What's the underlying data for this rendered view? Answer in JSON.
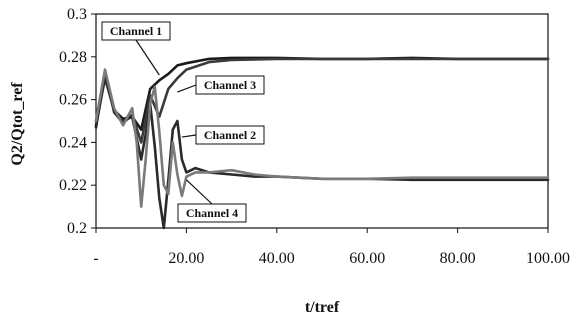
{
  "chart_data": {
    "type": "line",
    "title": "",
    "xlabel": "t/tref",
    "ylabel": "Q2/Qtot_ref",
    "xlim": [
      0,
      100
    ],
    "ylim": [
      0.2,
      0.3
    ],
    "xticks": [
      0,
      20,
      40,
      60,
      80,
      100
    ],
    "xtick_labels": [
      "-",
      "20.00",
      "40.00",
      "60.00",
      "80.00",
      "100.00"
    ],
    "yticks": [
      0.2,
      0.22,
      0.24,
      0.26,
      0.28,
      0.3
    ],
    "ytick_labels": [
      "0.2",
      "0.22",
      "0.24",
      "0.26",
      "0.28",
      "0.3"
    ],
    "grid": false,
    "legend": "none",
    "series": [
      {
        "name": "Channel 1",
        "color": "#1a1a1a",
        "x": [
          0,
          2,
          4,
          6,
          8,
          10,
          12,
          14,
          16,
          18,
          20,
          25,
          30,
          40,
          50,
          60,
          70,
          80,
          90,
          100
        ],
        "y": [
          0.247,
          0.272,
          0.255,
          0.251,
          0.252,
          0.246,
          0.265,
          0.269,
          0.272,
          0.276,
          0.277,
          0.279,
          0.2795,
          0.2795,
          0.279,
          0.279,
          0.2795,
          0.279,
          0.279,
          0.279
        ]
      },
      {
        "name": "Channel 3",
        "color": "#3a3a3a",
        "x": [
          0,
          2,
          4,
          6,
          8,
          10,
          12,
          14,
          16,
          18,
          20,
          25,
          30,
          40,
          50,
          60,
          70,
          80,
          90,
          100
        ],
        "y": [
          0.25,
          0.273,
          0.254,
          0.249,
          0.253,
          0.24,
          0.262,
          0.252,
          0.265,
          0.27,
          0.274,
          0.2775,
          0.2785,
          0.279,
          0.279,
          0.279,
          0.279,
          0.279,
          0.279,
          0.279
        ]
      },
      {
        "name": "Channel 2",
        "color": "#2a2a2a",
        "x": [
          0,
          2,
          4,
          6,
          8,
          10,
          11,
          12,
          13,
          14,
          15,
          16,
          17,
          18,
          19,
          20,
          22,
          25,
          30,
          35,
          40,
          50,
          60,
          70,
          80,
          90,
          100
        ],
        "y": [
          0.248,
          0.27,
          0.255,
          0.25,
          0.252,
          0.232,
          0.244,
          0.258,
          0.238,
          0.214,
          0.2,
          0.222,
          0.246,
          0.25,
          0.232,
          0.226,
          0.228,
          0.226,
          0.225,
          0.224,
          0.224,
          0.223,
          0.223,
          0.2225,
          0.2225,
          0.2225,
          0.2225
        ]
      },
      {
        "name": "Channel 4",
        "color": "#7a7a7a",
        "x": [
          0,
          2,
          4,
          6,
          7,
          8,
          9,
          10,
          11,
          12,
          13,
          14,
          15,
          16,
          17,
          18,
          19,
          20,
          22,
          25,
          30,
          35,
          40,
          50,
          60,
          70,
          80,
          90,
          100
        ],
        "y": [
          0.25,
          0.274,
          0.256,
          0.248,
          0.252,
          0.256,
          0.24,
          0.21,
          0.232,
          0.258,
          0.266,
          0.245,
          0.22,
          0.216,
          0.24,
          0.225,
          0.215,
          0.224,
          0.226,
          0.226,
          0.227,
          0.225,
          0.224,
          0.223,
          0.223,
          0.2235,
          0.2235,
          0.2235,
          0.2235
        ]
      }
    ],
    "annotations": [
      {
        "text": "Channel 1",
        "x": 14,
        "y": 0.2715
      },
      {
        "text": "Channel 3",
        "x": 18,
        "y": 0.2635
      },
      {
        "text": "Channel 2",
        "x": 19,
        "y": 0.2425
      },
      {
        "text": "Channel 4",
        "x": 20,
        "y": 0.2225
      }
    ]
  }
}
